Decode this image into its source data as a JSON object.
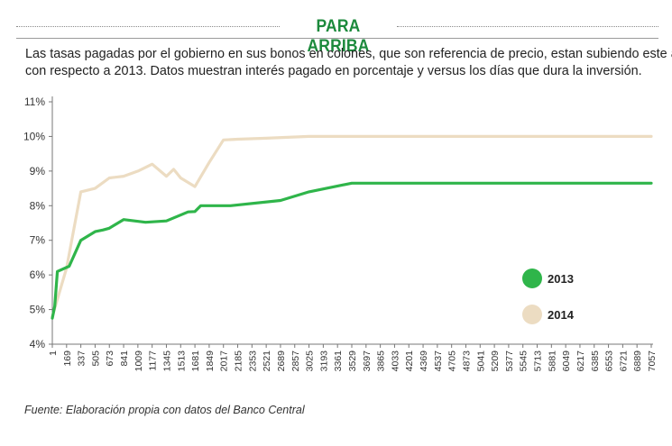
{
  "header": {
    "title": "PARA ARRIBA",
    "subtitle_line1": "Las tasas pagadas por el gobierno en sus bonos en colones, que son referencia de precio, estan subiendo este año",
    "subtitle_line2": "con respecto a 2013. Datos muestran interés pagado en porcentaje y versus los días que dura la inversión."
  },
  "footer": {
    "source": "Fuente: Elaboración propia con datos del Banco Central"
  },
  "colors": {
    "series_2013": "#2fb54a",
    "series_2014": "#ecdcc2",
    "title": "#1c8a3c",
    "axis": "#777777"
  },
  "chart_data": {
    "type": "line",
    "title": "",
    "xlabel": "",
    "ylabel": "",
    "x_ticks": [
      "1",
      "169",
      "337",
      "505",
      "673",
      "841",
      "1009",
      "1177",
      "1345",
      "1513",
      "1681",
      "1849",
      "2017",
      "2185",
      "2353",
      "2521",
      "2689",
      "2857",
      "3025",
      "3193",
      "3361",
      "3529",
      "3697",
      "3865",
      "4033",
      "4201",
      "4369",
      "4537",
      "4705",
      "4873",
      "5041",
      "5209",
      "5377",
      "5545",
      "5713",
      "5881",
      "6049",
      "6217",
      "6385",
      "6553",
      "6721",
      "6889",
      "7057"
    ],
    "y_ticks": [
      "4%",
      "5%",
      "6%",
      "7%",
      "8%",
      "9%",
      "10%",
      "11%"
    ],
    "ylim": [
      4,
      11
    ],
    "xlim": [
      1,
      7057
    ],
    "grid": false,
    "legend_position": "right",
    "series": [
      {
        "name": "2013",
        "x": [
          1,
          30,
          60,
          200,
          337,
          505,
          600,
          673,
          841,
          1100,
          1345,
          1600,
          1681,
          1750,
          2100,
          2689,
          3025,
          3529,
          7057
        ],
        "y": [
          4.75,
          5.1,
          6.1,
          6.25,
          7.0,
          7.25,
          7.3,
          7.35,
          7.6,
          7.52,
          7.56,
          7.82,
          7.83,
          8.0,
          8.0,
          8.15,
          8.4,
          8.65,
          8.65
        ]
      },
      {
        "name": "2014",
        "x": [
          1,
          169,
          337,
          505,
          673,
          841,
          1009,
          1177,
          1345,
          1430,
          1513,
          1681,
          1849,
          2017,
          2185,
          2521,
          3025,
          3529,
          7057
        ],
        "y": [
          4.8,
          6.2,
          8.4,
          8.5,
          8.8,
          8.85,
          9.0,
          9.2,
          8.85,
          9.05,
          8.8,
          8.55,
          9.25,
          9.9,
          9.92,
          9.95,
          10.0,
          10.0,
          10.0
        ]
      }
    ]
  }
}
